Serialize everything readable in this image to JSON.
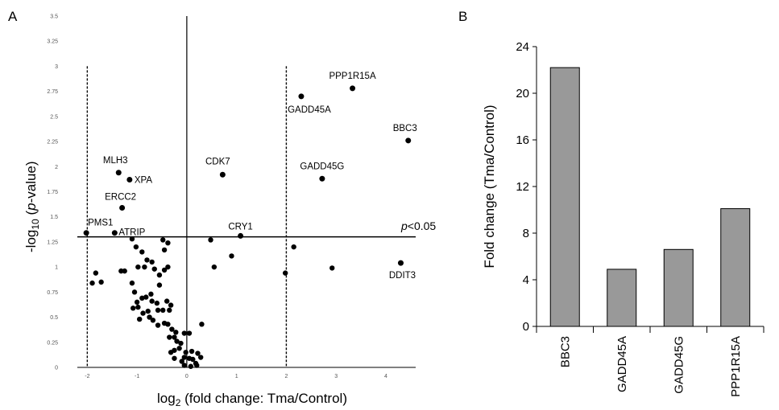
{
  "figure": {
    "panel_a_label": "A",
    "panel_b_label": "B"
  },
  "chart_data": [
    {
      "type": "scatter",
      "title": "",
      "xlabel_prefix": "log",
      "xlabel_sub": "2",
      "xlabel_rest": " (fold change: Tma/Control)",
      "ylabel_prefix": "-log",
      "ylabel_sub": "10",
      "ylabel_mid": " (",
      "ylabel_italic": "p",
      "ylabel_rest": "-value)",
      "xlim": [
        -2.2,
        4.6
      ],
      "ylim": [
        0,
        3.5
      ],
      "xticks": [
        -2,
        -1,
        0,
        1,
        2,
        3,
        4
      ],
      "yticks": [
        0,
        0.25,
        0.5,
        0.75,
        1,
        1.25,
        1.5,
        1.75,
        2,
        2.25,
        2.5,
        2.75,
        3,
        3.25,
        3.5
      ],
      "significance_line_y": 1.3,
      "significance_label_italic": "p",
      "significance_label_rest": "<0.05",
      "fold_change_lines_x": [
        -2,
        2
      ],
      "labeled_points": [
        {
          "label": "PPP1R15A",
          "x": 3.33,
          "y": 2.78
        },
        {
          "label": "GADD45A",
          "x": 2.3,
          "y": 2.7
        },
        {
          "label": "BBC3",
          "x": 4.45,
          "y": 2.26
        },
        {
          "label": "GADD45G",
          "x": 2.72,
          "y": 1.88
        },
        {
          "label": "CDK7",
          "x": 0.72,
          "y": 1.92
        },
        {
          "label": "MLH3",
          "x": -1.37,
          "y": 1.94
        },
        {
          "label": "XPA",
          "x": -1.15,
          "y": 1.87
        },
        {
          "label": "ERCC2",
          "x": -1.3,
          "y": 1.59
        },
        {
          "label": "PMS1",
          "x": -2.02,
          "y": 1.34
        },
        {
          "label": "ATRIP",
          "x": -1.45,
          "y": 1.34
        },
        {
          "label": "CRY1",
          "x": 1.08,
          "y": 1.31
        },
        {
          "label": "DDIT3",
          "x": 4.3,
          "y": 1.04
        }
      ],
      "points": [
        {
          "x": -1.1,
          "y": 1.28
        },
        {
          "x": -1.02,
          "y": 1.2
        },
        {
          "x": -0.9,
          "y": 1.15
        },
        {
          "x": -0.8,
          "y": 1.07
        },
        {
          "x": -0.7,
          "y": 1.05
        },
        {
          "x": -0.48,
          "y": 1.27
        },
        {
          "x": -0.45,
          "y": 1.17
        },
        {
          "x": -0.38,
          "y": 1.24
        },
        {
          "x": -0.38,
          "y": 1.0
        },
        {
          "x": -0.45,
          "y": 0.97
        },
        {
          "x": -1.32,
          "y": 0.96
        },
        {
          "x": -1.25,
          "y": 0.96
        },
        {
          "x": -0.98,
          "y": 1.0
        },
        {
          "x": -0.85,
          "y": 1.0
        },
        {
          "x": -0.65,
          "y": 0.98
        },
        {
          "x": -0.55,
          "y": 0.92
        },
        {
          "x": -1.1,
          "y": 0.84
        },
        {
          "x": -0.55,
          "y": 0.82
        },
        {
          "x": -0.72,
          "y": 0.73
        },
        {
          "x": -0.82,
          "y": 0.7
        },
        {
          "x": -0.9,
          "y": 0.69
        },
        {
          "x": -1.05,
          "y": 0.75
        },
        {
          "x": -1.0,
          "y": 0.65
        },
        {
          "x": -0.7,
          "y": 0.66
        },
        {
          "x": -0.6,
          "y": 0.64
        },
        {
          "x": -0.4,
          "y": 0.66
        },
        {
          "x": -0.32,
          "y": 0.62
        },
        {
          "x": -0.35,
          "y": 0.57
        },
        {
          "x": -0.48,
          "y": 0.57
        },
        {
          "x": -0.58,
          "y": 0.57
        },
        {
          "x": -0.78,
          "y": 0.56
        },
        {
          "x": -0.88,
          "y": 0.54
        },
        {
          "x": -0.98,
          "y": 0.6
        },
        {
          "x": -1.08,
          "y": 0.59
        },
        {
          "x": -0.95,
          "y": 0.48
        },
        {
          "x": -0.75,
          "y": 0.5
        },
        {
          "x": -0.68,
          "y": 0.47
        },
        {
          "x": -0.58,
          "y": 0.42
        },
        {
          "x": -0.45,
          "y": 0.44
        },
        {
          "x": -0.38,
          "y": 0.43
        },
        {
          "x": -0.3,
          "y": 0.38
        },
        {
          "x": -0.22,
          "y": 0.35
        },
        {
          "x": -0.05,
          "y": 0.34
        },
        {
          "x": 0.05,
          "y": 0.34
        },
        {
          "x": -0.25,
          "y": 0.3
        },
        {
          "x": -0.35,
          "y": 0.3
        },
        {
          "x": -0.12,
          "y": 0.24
        },
        {
          "x": -0.2,
          "y": 0.26
        },
        {
          "x": -0.15,
          "y": 0.19
        },
        {
          "x": -0.25,
          "y": 0.17
        },
        {
          "x": -0.32,
          "y": 0.15
        },
        {
          "x": -0.02,
          "y": 0.15
        },
        {
          "x": 0.1,
          "y": 0.16
        },
        {
          "x": 0.22,
          "y": 0.14
        },
        {
          "x": -0.05,
          "y": 0.1
        },
        {
          "x": 0.05,
          "y": 0.09
        },
        {
          "x": 0.12,
          "y": 0.08
        },
        {
          "x": -0.1,
          "y": 0.06
        },
        {
          "x": 0.18,
          "y": 0.04
        },
        {
          "x": -0.05,
          "y": 0.02
        },
        {
          "x": 0.08,
          "y": 0.01
        },
        {
          "x": 0.2,
          "y": 0.02
        },
        {
          "x": 0.28,
          "y": 0.1
        },
        {
          "x": -0.25,
          "y": 0.09
        },
        {
          "x": 0.3,
          "y": 0.43
        },
        {
          "x": 0.48,
          "y": 1.27
        },
        {
          "x": 0.55,
          "y": 1.0
        },
        {
          "x": 0.9,
          "y": 1.11
        },
        {
          "x": 1.98,
          "y": 0.94
        },
        {
          "x": 2.15,
          "y": 1.2
        },
        {
          "x": 2.92,
          "y": 0.99
        },
        {
          "x": -1.72,
          "y": 0.85
        },
        {
          "x": -1.9,
          "y": 0.84
        },
        {
          "x": -1.83,
          "y": 0.94
        }
      ]
    },
    {
      "type": "bar",
      "title": "",
      "categories": [
        "BBC3",
        "GADD45A",
        "GADD45G",
        "PPP1R15A"
      ],
      "values": [
        22.2,
        4.9,
        6.6,
        10.1
      ],
      "ylabel": "Fold change (Tma/Control)",
      "xlabel": "",
      "ylim": [
        0,
        24
      ],
      "yticks": [
        0,
        4,
        8,
        12,
        16,
        20,
        24
      ],
      "bar_color": "#999999"
    }
  ]
}
